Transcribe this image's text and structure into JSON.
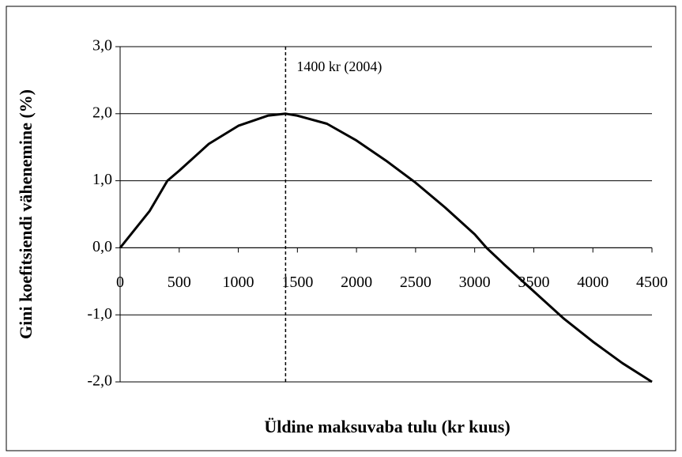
{
  "chart_data": {
    "type": "line",
    "x_label": "Üldine maksuvaba tulu (kr kuus)",
    "y_label": "Gini koefitsiendi vähenemine (%)",
    "annotation": {
      "x": 1400,
      "text": "1400 kr (2004)"
    },
    "x": [
      0,
      250,
      400,
      500,
      750,
      1000,
      1250,
      1400,
      1500,
      1750,
      2000,
      2250,
      2500,
      2750,
      3000,
      3100,
      3250,
      3500,
      3750,
      4000,
      4250,
      4500
    ],
    "series": [
      {
        "color": "#000000",
        "values": [
          0,
          0.55,
          1.0,
          1.15,
          1.55,
          1.82,
          1.97,
          2.0,
          1.97,
          1.85,
          1.6,
          1.3,
          0.97,
          0.6,
          0.2,
          0.0,
          -0.25,
          -0.65,
          -1.05,
          -1.4,
          -1.72,
          -2.0
        ]
      }
    ],
    "xlim": [
      0,
      4500
    ],
    "xticks": [
      0,
      500,
      1000,
      1500,
      2000,
      2500,
      3000,
      3500,
      4000,
      4500
    ],
    "ylim": [
      -2,
      3
    ],
    "yticks": [
      {
        "value": -2,
        "label": "-2,0"
      },
      {
        "value": -1,
        "label": "-1,0"
      },
      {
        "value": 0,
        "label": "0,0"
      },
      {
        "value": 1,
        "label": "1,0"
      },
      {
        "value": 2,
        "label": "2,0"
      },
      {
        "value": 3,
        "label": "3,0"
      }
    ],
    "grid": true
  }
}
